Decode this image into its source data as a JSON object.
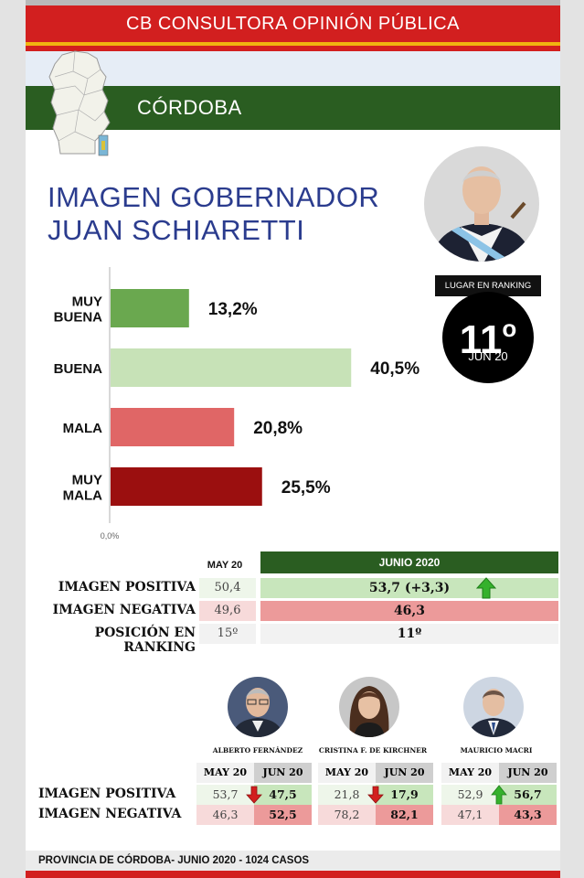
{
  "header": {
    "title": "CB CONSULTORA OPINIÓN PÚBLICA"
  },
  "region": {
    "name": "CÓRDOBA"
  },
  "title": {
    "line1": "IMAGEN GOBERNADOR",
    "line2": "JUAN SCHIARETTI"
  },
  "ranking": {
    "label": "LUGAR EN RANKING",
    "value": "11",
    "ordinal": "o",
    "date": "JUN 20"
  },
  "colors": {
    "header_red": "#d21f1f",
    "region_green": "#2a5d21",
    "title_blue": "#2b3c8e",
    "positive_cell": "#c8e6bc",
    "negative_cell": "#ec9a9a",
    "arrow_green": "#35b12c",
    "arrow_red": "#d2201f"
  },
  "chart_data": {
    "type": "bar",
    "orientation": "horizontal",
    "categories": [
      "MUY BUENA",
      "BUENA",
      "MALA",
      "MUY MALA"
    ],
    "values": [
      13.2,
      40.5,
      20.8,
      25.5
    ],
    "value_labels": [
      "13,2%",
      "40,5%",
      "20,8%",
      "25,5%"
    ],
    "colors": [
      "#6aa84f",
      "#c7e2b7",
      "#e06666",
      "#9b0f0f"
    ],
    "xlim": [
      0,
      50
    ],
    "axis_origin_label": "0,0%",
    "grid": false
  },
  "comparison": {
    "may_header": "MAY 20",
    "jun_header": "JUNIO 2020",
    "rows": [
      {
        "label": "IMAGEN POSITIVA",
        "may": "50,4",
        "jun": "53,7 (+3,3)",
        "trend": "up-arrow-icon"
      },
      {
        "label": "IMAGEN NEGATIVA",
        "may": "49,6",
        "jun": "46,3"
      },
      {
        "label": "POSICIÓN EN RANKING",
        "may": "15º",
        "jun": "11º"
      }
    ]
  },
  "national": {
    "row_labels": [
      "IMAGEN POSITIVA",
      "IMAGEN NEGATIVA"
    ],
    "people": [
      {
        "name": "ALBERTO FERNÁNDEZ",
        "may_label": "MAY 20",
        "jun_label": "JUN 20",
        "pos_may": "53,7",
        "pos_jun": "47,5",
        "neg_may": "46,3",
        "neg_jun": "52,5",
        "trend": "down-arrow-icon"
      },
      {
        "name": "CRISTINA F. DE KIRCHNER",
        "may_label": "MAY 20",
        "jun_label": "JUN 20",
        "pos_may": "21,8",
        "pos_jun": "17,9",
        "neg_may": "78,2",
        "neg_jun": "82,1",
        "trend": "down-arrow-icon"
      },
      {
        "name": "MAURICIO MACRI",
        "may_label": "MAY 20",
        "jun_label": "JUN 20",
        "pos_may": "52,9",
        "pos_jun": "56,7",
        "neg_may": "47,1",
        "neg_jun": "43,3",
        "trend": "up-arrow-icon"
      }
    ]
  },
  "footer": {
    "text": "PROVINCIA DE CÓRDOBA- JUNIO 2020 -  1024  CASOS"
  }
}
